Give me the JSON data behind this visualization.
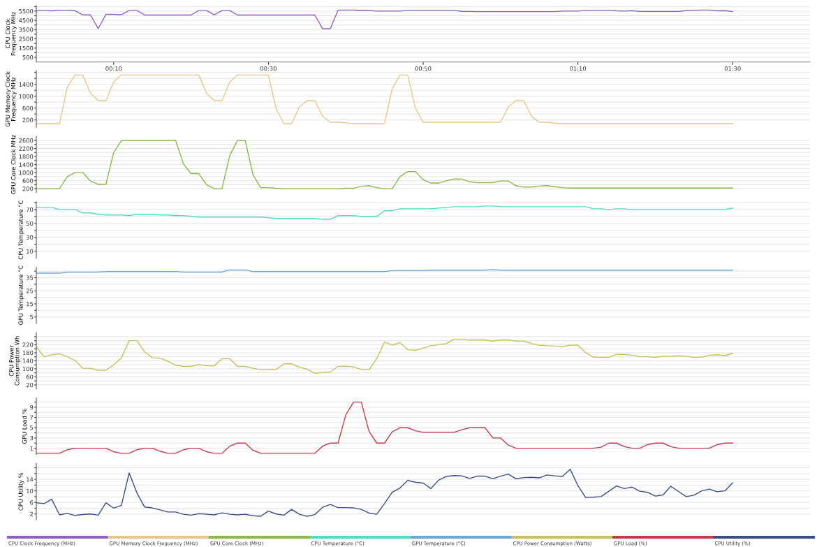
{
  "chart_data": [
    {
      "type": "line",
      "ylabel": "CPU Clock Frequency MHz",
      "grid": "y",
      "legend": "bottom",
      "line_style": "solid",
      "x": [
        0,
        1,
        2,
        3,
        4,
        5,
        6,
        7,
        8,
        9,
        10,
        11,
        12,
        13,
        14,
        15,
        16,
        17,
        18,
        19,
        20,
        21,
        22,
        23,
        24,
        25,
        26,
        27,
        28,
        29,
        30,
        31,
        32,
        33,
        34,
        35,
        36,
        37,
        38,
        39,
        40,
        41,
        42,
        43,
        44,
        45,
        46,
        47,
        48,
        49,
        50,
        51,
        52,
        53,
        54,
        55,
        56,
        57,
        58,
        59,
        60,
        61,
        62,
        63,
        64,
        65,
        66,
        67,
        68,
        69,
        70,
        71,
        72,
        73,
        74,
        75,
        76,
        77,
        78,
        79,
        80,
        81,
        82,
        83,
        84,
        85,
        86,
        87,
        88,
        89,
        90
      ],
      "xlim": [
        0,
        100
      ],
      "xticks": [
        {
          "value": 10,
          "label": "00:10"
        },
        {
          "value": 30,
          "label": "00:30"
        },
        {
          "value": 50,
          "label": "00:50"
        },
        {
          "value": 70,
          "label": "01:10"
        },
        {
          "value": 90,
          "label": "01:30"
        }
      ],
      "ylim": [
        0,
        6100
      ],
      "yticks": [
        500,
        {
          "value": 1000,
          "label": null
        },
        1500,
        {
          "value": 2000,
          "label": null
        },
        2500,
        {
          "value": 3000,
          "label": null
        },
        3500,
        {
          "value": 4000,
          "label": null
        },
        4500,
        {
          "value": 5000,
          "label": null
        },
        5500,
        {
          "value": 6000,
          "label": null
        }
      ],
      "series": [
        {
          "name": "CPU Clock Frequency (MHz)",
          "color": "#9060c8",
          "values": [
            5580,
            5560,
            5530,
            5600,
            5600,
            5550,
            5100,
            5100,
            3600,
            5150,
            5150,
            5120,
            5560,
            5560,
            5080,
            5080,
            5080,
            5080,
            5080,
            5080,
            5080,
            5560,
            5560,
            5100,
            5560,
            5560,
            5080,
            5080,
            5080,
            5080,
            5080,
            5080,
            5080,
            5080,
            5080,
            5080,
            5080,
            3600,
            3600,
            5600,
            5620,
            5620,
            5570,
            5570,
            5500,
            5500,
            5500,
            5500,
            5580,
            5580,
            5580,
            5580,
            5580,
            5580,
            5580,
            5480,
            5470,
            5450,
            5450,
            5450,
            5450,
            5450,
            5450,
            5450,
            5450,
            5450,
            5450,
            5450,
            5500,
            5500,
            5500,
            5580,
            5580,
            5580,
            5580,
            5530,
            5500,
            5550,
            5470,
            5470,
            5470,
            5470,
            5470,
            5470,
            5550,
            5580,
            5620,
            5620,
            5530,
            5550,
            5450
          ]
        }
      ]
    },
    {
      "type": "line",
      "ylabel": "GPU Memory Clock Frequency MHz",
      "grid": "y",
      "legend": "bottom",
      "line_style": "solid",
      "tick_labels": "y",
      "x": [
        0,
        1,
        2,
        3,
        4,
        5,
        6,
        7,
        8,
        9,
        10,
        11,
        12,
        13,
        14,
        15,
        16,
        17,
        18,
        19,
        20,
        21,
        22,
        23,
        24,
        25,
        26,
        27,
        28,
        29,
        30,
        31,
        32,
        33,
        34,
        35,
        36,
        37,
        38,
        39,
        40,
        41,
        42,
        43,
        44,
        45,
        46,
        47,
        48,
        49,
        50,
        51,
        52,
        53,
        54,
        55,
        56,
        57,
        58,
        59,
        60,
        61,
        62,
        63,
        64,
        65,
        66,
        67,
        68,
        69,
        70,
        71,
        72,
        73,
        74,
        75,
        76,
        77,
        78,
        79,
        80,
        81,
        82,
        83,
        84,
        85,
        86,
        87,
        88,
        89,
        90
      ],
      "xlim": [
        0,
        100
      ],
      "ylim": [
        -50,
        1850
      ],
      "yticks": [
        200,
        {
          "value": 400,
          "label": null
        },
        600,
        {
          "value": 800,
          "label": null
        },
        1000,
        {
          "value": 1200,
          "label": null
        },
        1400,
        {
          "value": 1600,
          "label": null
        },
        {
          "value": 1800,
          "label": null
        }
      ],
      "series": [
        {
          "name": "GPU Memory Clock Frequency (MHz)",
          "color": "#e6c88a",
          "values": [
            75,
            75,
            75,
            75,
            1300,
            1715,
            1715,
            1100,
            850,
            850,
            1480,
            1715,
            1715,
            1715,
            1715,
            1715,
            1715,
            1715,
            1715,
            1715,
            1715,
            1715,
            1100,
            850,
            850,
            1480,
            1715,
            1715,
            1715,
            1715,
            1715,
            580,
            75,
            75,
            640,
            850,
            850,
            320,
            120,
            120,
            100,
            75,
            75,
            75,
            75,
            75,
            1250,
            1715,
            1715,
            600,
            120,
            120,
            120,
            120,
            120,
            120,
            120,
            120,
            120,
            120,
            120,
            640,
            850,
            850,
            320,
            120,
            120,
            90,
            75,
            75,
            75,
            75,
            75,
            75,
            75,
            75,
            75,
            75,
            75,
            75,
            75,
            75,
            75,
            75,
            75,
            75,
            75,
            75,
            75,
            75,
            75
          ]
        }
      ]
    },
    {
      "type": "line",
      "ylabel": "GPU Core Clock MHz",
      "grid": "y",
      "legend": "bottom",
      "line_style": "solid",
      "tick_labels": "y",
      "x": [
        0,
        1,
        2,
        3,
        4,
        5,
        6,
        7,
        8,
        9,
        10,
        11,
        12,
        13,
        14,
        15,
        16,
        17,
        18,
        19,
        20,
        21,
        22,
        23,
        24,
        25,
        26,
        27,
        28,
        29,
        30,
        31,
        32,
        33,
        34,
        35,
        36,
        37,
        38,
        39,
        40,
        41,
        42,
        43,
        44,
        45,
        46,
        47,
        48,
        49,
        50,
        51,
        52,
        53,
        54,
        55,
        56,
        57,
        58,
        59,
        60,
        61,
        62,
        63,
        64,
        65,
        66,
        67,
        68,
        69,
        70,
        71,
        72,
        73,
        74,
        75,
        76,
        77,
        78,
        79,
        80,
        81,
        82,
        83,
        84,
        85,
        86,
        87,
        88,
        89,
        90
      ],
      "xlim": [
        0,
        100
      ],
      "ylim": [
        0,
        2800
      ],
      "yticks": [
        200,
        {
          "value": 400,
          "label": null
        },
        600,
        {
          "value": 800,
          "label": null
        },
        1000,
        {
          "value": 1200,
          "label": null
        },
        1400,
        {
          "value": 1600,
          "label": null
        },
        1800,
        {
          "value": 2000,
          "label": null
        },
        2200,
        {
          "value": 2400,
          "label": null
        },
        2600
      ],
      "series": [
        {
          "name": "GPU Core Clock (MHz)",
          "color": "#8cb84a",
          "values": [
            200,
            200,
            200,
            200,
            800,
            1000,
            1000,
            580,
            420,
            420,
            2000,
            2600,
            2600,
            2600,
            2600,
            2600,
            2600,
            2600,
            2600,
            1450,
            950,
            950,
            400,
            200,
            200,
            1850,
            2600,
            2600,
            900,
            250,
            250,
            220,
            200,
            200,
            200,
            200,
            200,
            200,
            200,
            200,
            220,
            220,
            320,
            350,
            250,
            200,
            200,
            800,
            1050,
            1050,
            650,
            480,
            480,
            600,
            680,
            680,
            550,
            500,
            500,
            500,
            580,
            580,
            350,
            280,
            280,
            330,
            350,
            300,
            250,
            230,
            230,
            230,
            230,
            230,
            230,
            230,
            230,
            230,
            230,
            230,
            230,
            230,
            230,
            230,
            230,
            230,
            230,
            230,
            230,
            230,
            230
          ]
        }
      ]
    },
    {
      "type": "line",
      "ylabel": "CPU Temperature °C",
      "grid": "y",
      "legend": "bottom",
      "line_style": "solid",
      "tick_labels": "y",
      "x": [
        0,
        1,
        2,
        3,
        4,
        5,
        6,
        7,
        8,
        9,
        10,
        11,
        12,
        13,
        14,
        15,
        16,
        17,
        18,
        19,
        20,
        21,
        22,
        23,
        24,
        25,
        26,
        27,
        28,
        29,
        30,
        31,
        32,
        33,
        34,
        35,
        36,
        37,
        38,
        39,
        40,
        41,
        42,
        43,
        44,
        45,
        46,
        47,
        48,
        49,
        50,
        51,
        52,
        53,
        54,
        55,
        56,
        57,
        58,
        59,
        60,
        61,
        62,
        63,
        64,
        65,
        66,
        67,
        68,
        69,
        70,
        71,
        72,
        73,
        74,
        75,
        76,
        77,
        78,
        79,
        80,
        81,
        82,
        83,
        84,
        85,
        86,
        87,
        88,
        89,
        90
      ],
      "xlim": [
        0,
        100
      ],
      "ylim": [
        0,
        81
      ],
      "yticks": [
        10,
        {
          "value": 20,
          "label": null
        },
        30,
        {
          "value": 40,
          "label": null
        },
        50,
        {
          "value": 60,
          "label": null
        },
        70,
        {
          "value": 80,
          "label": null
        }
      ],
      "series": [
        {
          "name": "CPU Temperature (°C)",
          "color": "#50dcc0",
          "values": [
            73,
            73,
            73,
            70,
            70,
            70,
            65,
            65,
            63,
            62,
            62,
            62,
            61,
            63,
            63,
            63,
            62,
            62,
            61,
            61,
            60,
            59,
            59,
            59,
            59,
            59,
            59,
            59,
            59,
            59,
            58,
            57,
            57,
            57,
            57,
            57,
            57,
            56,
            56,
            61,
            61,
            61,
            60,
            60,
            60,
            68,
            68,
            71,
            71,
            71,
            71,
            71,
            72,
            73,
            74,
            74,
            74,
            74,
            75,
            75,
            74,
            74,
            74,
            74,
            74,
            74,
            74,
            74,
            74,
            74,
            74,
            74,
            71,
            71,
            70,
            71,
            71,
            70,
            70,
            70,
            70,
            70,
            70,
            70,
            70,
            70,
            70,
            70,
            70,
            70,
            72
          ]
        }
      ]
    },
    {
      "type": "line",
      "ylabel": "GPU Temperature °C",
      "grid": "y",
      "legend": "bottom",
      "line_style": "solid",
      "tick_labels": "y",
      "x": [
        0,
        1,
        2,
        3,
        4,
        5,
        6,
        7,
        8,
        9,
        10,
        11,
        12,
        13,
        14,
        15,
        16,
        17,
        18,
        19,
        20,
        21,
        22,
        23,
        24,
        25,
        26,
        27,
        28,
        29,
        30,
        31,
        32,
        33,
        34,
        35,
        36,
        37,
        38,
        39,
        40,
        41,
        42,
        43,
        44,
        45,
        46,
        47,
        48,
        49,
        50,
        51,
        52,
        53,
        54,
        55,
        56,
        57,
        58,
        59,
        60,
        61,
        62,
        63,
        64,
        65,
        66,
        67,
        68,
        69,
        70,
        71,
        72,
        73,
        74,
        75,
        76,
        77,
        78,
        79,
        80,
        81,
        82,
        83,
        84,
        85,
        86,
        87,
        88,
        89,
        90
      ],
      "xlim": [
        0,
        100
      ],
      "ylim": [
        0,
        43
      ],
      "yticks": [
        5,
        {
          "value": 10,
          "label": null
        },
        15,
        {
          "value": 20,
          "label": null
        },
        25,
        {
          "value": 30,
          "label": null
        },
        35,
        {
          "value": 40,
          "label": null
        }
      ],
      "series": [
        {
          "name": "GPU Temperature (°C)",
          "color": "#6aa6dc",
          "values": [
            38.5,
            38.5,
            38.5,
            38.5,
            39.3,
            39.3,
            39.3,
            39.3,
            39.3,
            39.7,
            39.7,
            39.7,
            39.7,
            39.7,
            39.7,
            39.7,
            39.7,
            39.7,
            39.7,
            39.3,
            39.3,
            39.3,
            39.3,
            39.3,
            39.3,
            40.9,
            40.9,
            40.9,
            39.7,
            39.7,
            39.7,
            39.7,
            39.7,
            39.7,
            39.7,
            39.7,
            39.7,
            39.7,
            39.7,
            39.7,
            39.7,
            39.7,
            39.7,
            39.7,
            39.7,
            39.7,
            40.4,
            40.4,
            40.4,
            40.4,
            40.4,
            40.7,
            40.7,
            40.7,
            40.7,
            40.7,
            40.7,
            40.7,
            40.7,
            41.2,
            40.7,
            40.7,
            40.7,
            40.7,
            40.7,
            40.7,
            40.7,
            40.7,
            40.7,
            40.7,
            40.7,
            40.7,
            40.7,
            40.7,
            40.7,
            40.7,
            40.7,
            40.7,
            40.7,
            40.7,
            40.7,
            40.7,
            40.7,
            40.7,
            40.7,
            40.7,
            40.7,
            40.7,
            40.7,
            40.7,
            40.7
          ]
        }
      ]
    },
    {
      "type": "line",
      "ylabel": "CPU Power Consumption Wh",
      "grid": "y",
      "legend": "bottom",
      "line_style": "solid",
      "tick_labels": "y",
      "x": [
        0,
        1,
        2,
        3,
        4,
        5,
        6,
        7,
        8,
        9,
        10,
        11,
        12,
        13,
        14,
        15,
        16,
        17,
        18,
        19,
        20,
        21,
        22,
        23,
        24,
        25,
        26,
        27,
        28,
        29,
        30,
        31,
        32,
        33,
        34,
        35,
        36,
        37,
        38,
        39,
        40,
        41,
        42,
        43,
        44,
        45,
        46,
        47,
        48,
        49,
        50,
        51,
        52,
        53,
        54,
        55,
        56,
        57,
        58,
        59,
        60,
        61,
        62,
        63,
        64,
        65,
        66,
        67,
        68,
        69,
        70,
        71,
        72,
        73,
        74,
        75,
        76,
        77,
        78,
        79,
        80,
        81,
        82,
        83,
        84,
        85,
        86,
        87,
        88,
        89,
        90
      ],
      "xlim": [
        0,
        100
      ],
      "ylim": [
        0,
        280
      ],
      "yticks": [
        20,
        {
          "value": 40,
          "label": null
        },
        60,
        {
          "value": 80,
          "label": null
        },
        100,
        {
          "value": 120,
          "label": null
        },
        140,
        {
          "value": 160,
          "label": null
        },
        180,
        {
          "value": 200,
          "label": null
        },
        220,
        {
          "value": 240,
          "label": null
        },
        {
          "value": 260,
          "label": null
        }
      ],
      "series": [
        {
          "name": "CPU Power Consumption (Watts)",
          "color": "#c4c25a",
          "values": [
            210,
            160,
            170,
            175,
            160,
            142,
            103,
            103,
            93,
            93,
            120,
            155,
            240,
            240,
            185,
            155,
            153,
            138,
            118,
            112,
            112,
            122,
            115,
            115,
            150,
            150,
            112,
            112,
            103,
            95,
            97,
            97,
            125,
            125,
            108,
            98,
            78,
            82,
            84,
            112,
            113,
            110,
            97,
            95,
            150,
            233,
            218,
            230,
            195,
            192,
            203,
            215,
            220,
            225,
            248,
            248,
            243,
            243,
            243,
            238,
            243,
            243,
            238,
            238,
            225,
            218,
            215,
            213,
            210,
            218,
            218,
            180,
            158,
            157,
            157,
            172,
            172,
            168,
            160,
            160,
            157,
            162,
            162,
            165,
            162,
            157,
            158,
            168,
            170,
            165,
            178
          ]
        }
      ]
    },
    {
      "type": "line",
      "ylabel": "GPU Load %",
      "grid": "y",
      "legend": "bottom",
      "line_style": "solid",
      "tick_labels": "y",
      "x": [
        0,
        1,
        2,
        3,
        4,
        5,
        6,
        7,
        8,
        9,
        10,
        11,
        12,
        13,
        14,
        15,
        16,
        17,
        18,
        19,
        20,
        21,
        22,
        23,
        24,
        25,
        26,
        27,
        28,
        29,
        30,
        31,
        32,
        33,
        34,
        35,
        36,
        37,
        38,
        39,
        40,
        41,
        42,
        43,
        44,
        45,
        46,
        47,
        48,
        49,
        50,
        51,
        52,
        53,
        54,
        55,
        56,
        57,
        58,
        59,
        60,
        61,
        62,
        63,
        64,
        65,
        66,
        67,
        68,
        69,
        70,
        71,
        72,
        73,
        74,
        75,
        76,
        77,
        78,
        79,
        80,
        81,
        82,
        83,
        84,
        85,
        86,
        87,
        88,
        89,
        90
      ],
      "xlim": [
        0,
        100
      ],
      "ylim": [
        -0.2,
        10.8
      ],
      "yticks": [
        1,
        {
          "value": 2,
          "label": null
        },
        3,
        {
          "value": 4,
          "label": null
        },
        5,
        {
          "value": 6,
          "label": null
        },
        7,
        {
          "value": 8,
          "label": null
        },
        9,
        {
          "value": 10,
          "label": null
        }
      ],
      "series": [
        {
          "name": "GPU Load (%)",
          "color": "#c63a4c",
          "values": [
            0,
            0,
            0,
            0,
            0.7,
            1,
            1,
            1,
            1,
            1,
            0.3,
            0,
            0,
            0.7,
            1,
            1,
            0.4,
            0,
            0,
            0.7,
            1,
            1,
            0.3,
            0,
            0,
            1.4,
            2,
            2,
            0.6,
            0,
            0,
            0,
            0,
            0,
            0,
            0,
            0,
            1.4,
            2,
            2,
            7.5,
            10,
            10,
            4.3,
            2,
            2,
            4.2,
            5,
            5,
            4.4,
            4.1,
            4.1,
            4.1,
            4.1,
            4.1,
            4.6,
            5,
            5,
            5,
            3,
            3,
            1.6,
            1,
            1,
            1,
            1,
            1,
            1,
            1,
            1,
            1,
            1,
            1,
            1.2,
            2,
            2,
            1.3,
            1,
            1,
            1.7,
            2,
            2,
            1.3,
            1,
            1,
            1,
            1,
            1,
            1.7,
            2,
            2
          ]
        }
      ]
    },
    {
      "type": "line",
      "ylabel": "CPU Utility %",
      "grid": "y",
      "legend": "bottom",
      "line_style": "solid",
      "tick_labels": "y",
      "x": [
        0,
        1,
        2,
        3,
        4,
        5,
        6,
        7,
        8,
        9,
        10,
        11,
        12,
        13,
        14,
        15,
        16,
        17,
        18,
        19,
        20,
        21,
        22,
        23,
        24,
        25,
        26,
        27,
        28,
        29,
        30,
        31,
        32,
        33,
        34,
        35,
        36,
        37,
        38,
        39,
        40,
        41,
        42,
        43,
        44,
        45,
        46,
        47,
        48,
        49,
        50,
        51,
        52,
        53,
        54,
        55,
        56,
        57,
        58,
        59,
        60,
        61,
        62,
        63,
        64,
        65,
        66,
        67,
        68,
        69,
        70,
        71,
        72,
        73,
        74,
        75,
        76,
        77,
        78,
        79,
        80,
        81,
        82,
        83,
        84,
        85,
        86,
        87,
        88,
        89,
        90
      ],
      "xlim": [
        0,
        100
      ],
      "ylim": [
        0,
        19.5
      ],
      "yticks": [
        2,
        {
          "value": 4,
          "label": null
        },
        6,
        {
          "value": 8,
          "label": null
        },
        10,
        {
          "value": 12,
          "label": null
        },
        14,
        {
          "value": 16,
          "label": null
        },
        {
          "value": 18,
          "label": null
        }
      ],
      "series": [
        {
          "name": "CPU Utility (%)",
          "color": "#3c4c86",
          "values": [
            5.9,
            5.6,
            7.1,
            1.7,
            2.2,
            1.5,
            1.8,
            2.0,
            1.6,
            5.9,
            4.0,
            5.0,
            16.2,
            9.3,
            4.4,
            4.1,
            3.4,
            2.7,
            2.7,
            1.9,
            1.6,
            2.1,
            1.9,
            1.7,
            2.4,
            1.9,
            1.7,
            1.9,
            1.4,
            1.2,
            3.0,
            2.0,
            1.6,
            3.6,
            1.9,
            1.2,
            1.8,
            4.3,
            5.3,
            4.2,
            4.2,
            4.1,
            3.6,
            2.3,
            1.9,
            5.6,
            9.5,
            11,
            13.6,
            13,
            12.7,
            10.8,
            13.7,
            15,
            15.3,
            15.2,
            14.3,
            15.1,
            15.1,
            14.2,
            15.1,
            15.8,
            14.2,
            14.6,
            14.7,
            14.5,
            15.5,
            15.2,
            15,
            17.5,
            11.8,
            7.7,
            7.8,
            8,
            9.9,
            11.7,
            10.8,
            11.3,
            9.9,
            9.5,
            8.2,
            8.6,
            11.6,
            9.8,
            8,
            8.5,
            10,
            10.6,
            9.7,
            10,
            12.8
          ]
        }
      ]
    }
  ]
}
